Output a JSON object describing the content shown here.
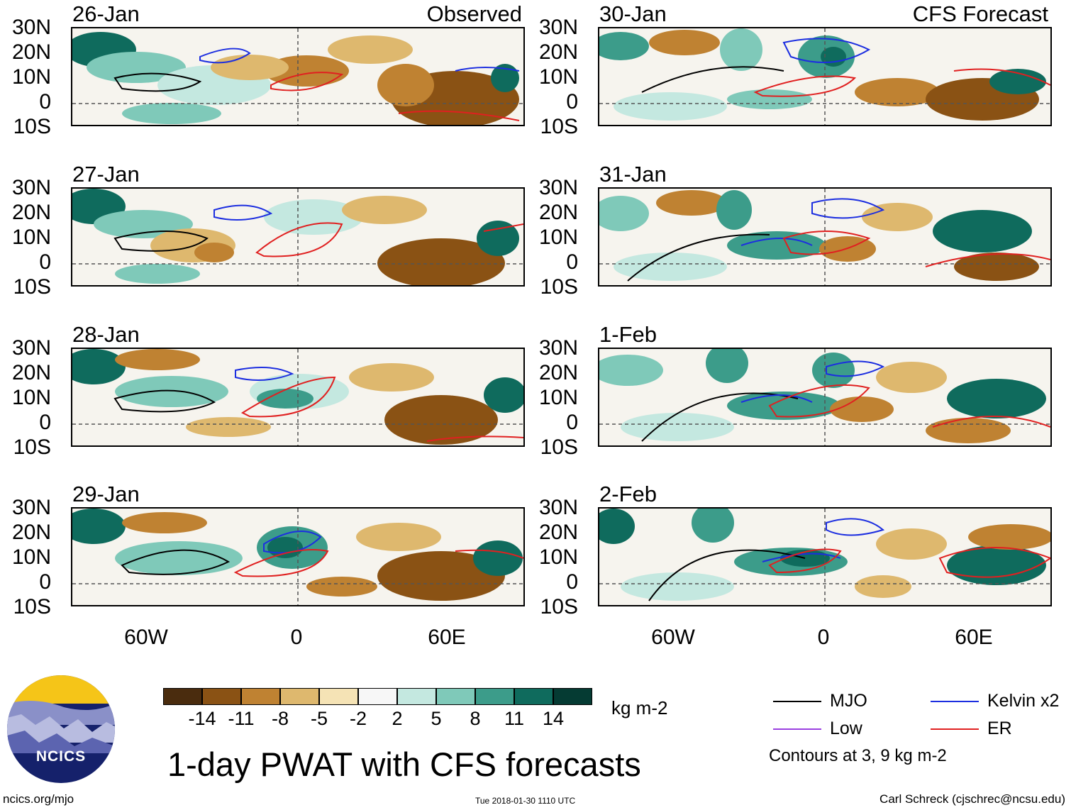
{
  "panels": [
    {
      "date": "26-Jan",
      "tag": "Observed"
    },
    {
      "date": "27-Jan",
      "tag": ""
    },
    {
      "date": "28-Jan",
      "tag": ""
    },
    {
      "date": "29-Jan",
      "tag": ""
    },
    {
      "date": "30-Jan",
      "tag": "CFS Forecast"
    },
    {
      "date": "31-Jan",
      "tag": ""
    },
    {
      "date": "1-Feb",
      "tag": ""
    },
    {
      "date": "2-Feb",
      "tag": ""
    }
  ],
  "lat_labels": [
    "30N",
    "20N",
    "10N",
    "0",
    "10S"
  ],
  "lon_labels": [
    "60W",
    "0",
    "60E"
  ],
  "colorbar": {
    "ticks": [
      "-14",
      "-11",
      "-8",
      "-5",
      "-2",
      "2",
      "5",
      "8",
      "11",
      "14"
    ],
    "colors": [
      "#4a2c0e",
      "#8a5214",
      "#bf8232",
      "#deb86e",
      "#f5e3b5",
      "#f7f7f7",
      "#c4e8e0",
      "#7fc9b9",
      "#3c9c8a",
      "#0f6b5d",
      "#053b33"
    ],
    "units": "kg m-2"
  },
  "title": "1-day PWAT with CFS forecasts",
  "legend": {
    "items": [
      {
        "label": "MJO",
        "color": "#000000"
      },
      {
        "label": "Kelvin x2",
        "color": "#1c2ee0"
      },
      {
        "label": "Low",
        "color": "#9a3fe0"
      },
      {
        "label": "ER",
        "color": "#e02020"
      }
    ],
    "note": "Contours at 3, 9 kg m-2"
  },
  "logo_text": "NCICS",
  "footer": {
    "site": "ncics.org/mjo",
    "timestamp": "Tue 2018-01-30 1110 UTC",
    "credit": "Carl Schreck (cjschrec@ncsu.edu)"
  }
}
